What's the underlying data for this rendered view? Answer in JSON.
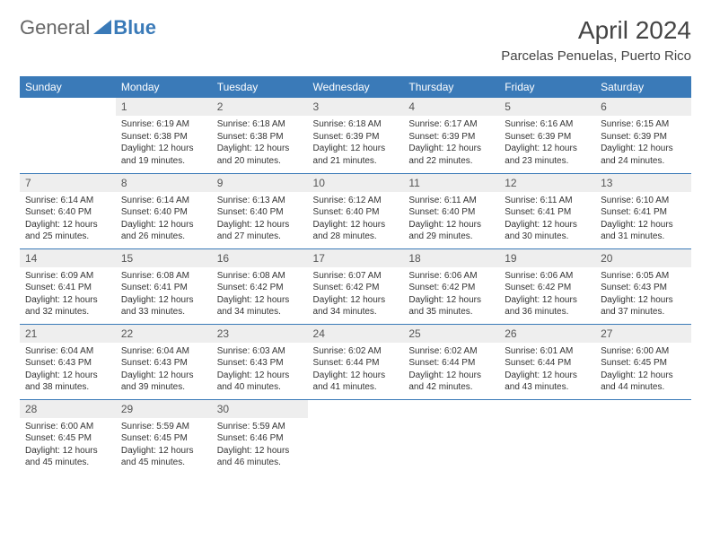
{
  "logo": {
    "text1": "General",
    "text2": "Blue",
    "icon_color": "#3a7ab8"
  },
  "title": "April 2024",
  "location": "Parcelas Penuelas, Puerto Rico",
  "colors": {
    "header_bg": "#3a7ab8",
    "header_text": "#ffffff",
    "daynum_bg": "#eeeeee",
    "border": "#3a7ab8",
    "text": "#333333"
  },
  "typography": {
    "title_fontsize": 28,
    "location_fontsize": 15,
    "weekday_fontsize": 12,
    "daynum_fontsize": 12,
    "body_fontsize": 10
  },
  "weekdays": [
    "Sunday",
    "Monday",
    "Tuesday",
    "Wednesday",
    "Thursday",
    "Friday",
    "Saturday"
  ],
  "layout": {
    "columns": 7,
    "rows": 5,
    "first_weekday_index": 1,
    "days_in_month": 30
  },
  "days": [
    {
      "n": 1,
      "sunrise": "6:19 AM",
      "sunset": "6:38 PM",
      "daylight": "12 hours and 19 minutes."
    },
    {
      "n": 2,
      "sunrise": "6:18 AM",
      "sunset": "6:38 PM",
      "daylight": "12 hours and 20 minutes."
    },
    {
      "n": 3,
      "sunrise": "6:18 AM",
      "sunset": "6:39 PM",
      "daylight": "12 hours and 21 minutes."
    },
    {
      "n": 4,
      "sunrise": "6:17 AM",
      "sunset": "6:39 PM",
      "daylight": "12 hours and 22 minutes."
    },
    {
      "n": 5,
      "sunrise": "6:16 AM",
      "sunset": "6:39 PM",
      "daylight": "12 hours and 23 minutes."
    },
    {
      "n": 6,
      "sunrise": "6:15 AM",
      "sunset": "6:39 PM",
      "daylight": "12 hours and 24 minutes."
    },
    {
      "n": 7,
      "sunrise": "6:14 AM",
      "sunset": "6:40 PM",
      "daylight": "12 hours and 25 minutes."
    },
    {
      "n": 8,
      "sunrise": "6:14 AM",
      "sunset": "6:40 PM",
      "daylight": "12 hours and 26 minutes."
    },
    {
      "n": 9,
      "sunrise": "6:13 AM",
      "sunset": "6:40 PM",
      "daylight": "12 hours and 27 minutes."
    },
    {
      "n": 10,
      "sunrise": "6:12 AM",
      "sunset": "6:40 PM",
      "daylight": "12 hours and 28 minutes."
    },
    {
      "n": 11,
      "sunrise": "6:11 AM",
      "sunset": "6:40 PM",
      "daylight": "12 hours and 29 minutes."
    },
    {
      "n": 12,
      "sunrise": "6:11 AM",
      "sunset": "6:41 PM",
      "daylight": "12 hours and 30 minutes."
    },
    {
      "n": 13,
      "sunrise": "6:10 AM",
      "sunset": "6:41 PM",
      "daylight": "12 hours and 31 minutes."
    },
    {
      "n": 14,
      "sunrise": "6:09 AM",
      "sunset": "6:41 PM",
      "daylight": "12 hours and 32 minutes."
    },
    {
      "n": 15,
      "sunrise": "6:08 AM",
      "sunset": "6:41 PM",
      "daylight": "12 hours and 33 minutes."
    },
    {
      "n": 16,
      "sunrise": "6:08 AM",
      "sunset": "6:42 PM",
      "daylight": "12 hours and 34 minutes."
    },
    {
      "n": 17,
      "sunrise": "6:07 AM",
      "sunset": "6:42 PM",
      "daylight": "12 hours and 34 minutes."
    },
    {
      "n": 18,
      "sunrise": "6:06 AM",
      "sunset": "6:42 PM",
      "daylight": "12 hours and 35 minutes."
    },
    {
      "n": 19,
      "sunrise": "6:06 AM",
      "sunset": "6:42 PM",
      "daylight": "12 hours and 36 minutes."
    },
    {
      "n": 20,
      "sunrise": "6:05 AM",
      "sunset": "6:43 PM",
      "daylight": "12 hours and 37 minutes."
    },
    {
      "n": 21,
      "sunrise": "6:04 AM",
      "sunset": "6:43 PM",
      "daylight": "12 hours and 38 minutes."
    },
    {
      "n": 22,
      "sunrise": "6:04 AM",
      "sunset": "6:43 PM",
      "daylight": "12 hours and 39 minutes."
    },
    {
      "n": 23,
      "sunrise": "6:03 AM",
      "sunset": "6:43 PM",
      "daylight": "12 hours and 40 minutes."
    },
    {
      "n": 24,
      "sunrise": "6:02 AM",
      "sunset": "6:44 PM",
      "daylight": "12 hours and 41 minutes."
    },
    {
      "n": 25,
      "sunrise": "6:02 AM",
      "sunset": "6:44 PM",
      "daylight": "12 hours and 42 minutes."
    },
    {
      "n": 26,
      "sunrise": "6:01 AM",
      "sunset": "6:44 PM",
      "daylight": "12 hours and 43 minutes."
    },
    {
      "n": 27,
      "sunrise": "6:00 AM",
      "sunset": "6:45 PM",
      "daylight": "12 hours and 44 minutes."
    },
    {
      "n": 28,
      "sunrise": "6:00 AM",
      "sunset": "6:45 PM",
      "daylight": "12 hours and 45 minutes."
    },
    {
      "n": 29,
      "sunrise": "5:59 AM",
      "sunset": "6:45 PM",
      "daylight": "12 hours and 45 minutes."
    },
    {
      "n": 30,
      "sunrise": "5:59 AM",
      "sunset": "6:46 PM",
      "daylight": "12 hours and 46 minutes."
    }
  ],
  "labels": {
    "sunrise": "Sunrise:",
    "sunset": "Sunset:",
    "daylight": "Daylight:"
  }
}
